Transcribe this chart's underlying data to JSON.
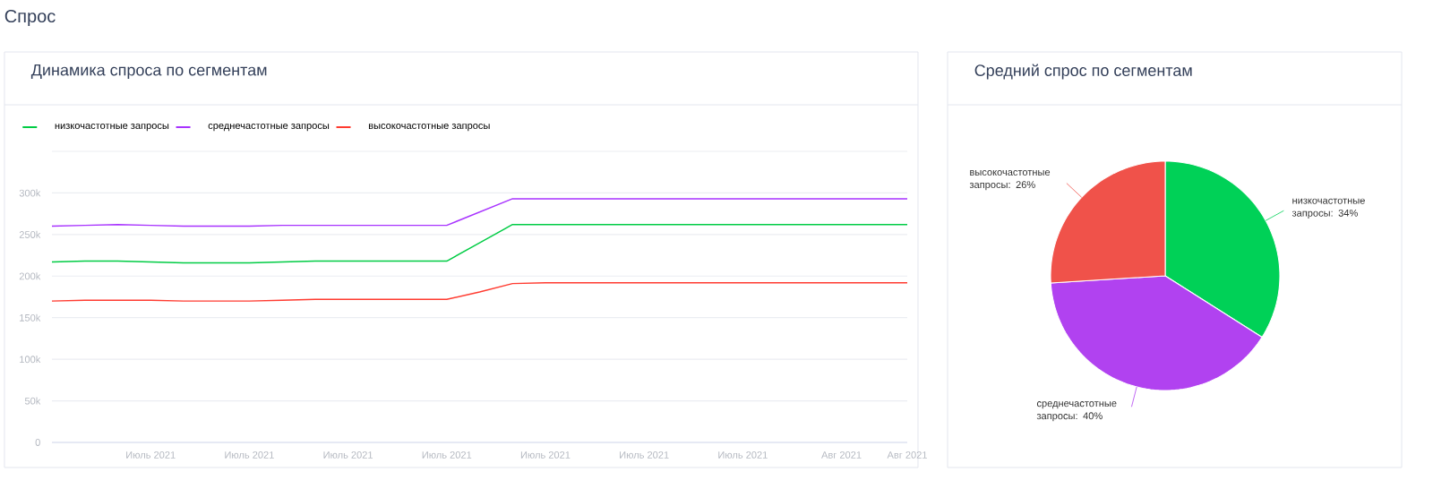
{
  "chart_data": [
    {
      "type": "line",
      "title": "Динамика спроса по сегментам",
      "annotations": [
        "Спрос"
      ],
      "categories": [
        null,
        null,
        null,
        "Июль 2021",
        null,
        null,
        "Июль 2021",
        null,
        null,
        "Июль 2021",
        null,
        null,
        "Июль 2021",
        null,
        null,
        "Июль 2021",
        null,
        null,
        "Июль 2021",
        null,
        null,
        "Июль 2021",
        null,
        null,
        "Авг 2021",
        null,
        "Авг 2021"
      ],
      "series": [
        {
          "name": "низкочастотные запросы",
          "color": "#00cc44",
          "values": [
            217000,
            218000,
            218000,
            217000,
            216000,
            216000,
            216000,
            217000,
            218000,
            218000,
            218000,
            218000,
            218000,
            240000,
            262000,
            262000,
            262000,
            262000,
            262000,
            262000,
            262000,
            262000,
            262000,
            262000,
            262000,
            262000,
            262000
          ]
        },
        {
          "name": "среднечастотные запросы",
          "color": "#a833ff",
          "values": [
            260000,
            261000,
            262000,
            261000,
            260000,
            260000,
            260000,
            261000,
            261000,
            261000,
            261000,
            261000,
            261000,
            277000,
            293000,
            293000,
            293000,
            293000,
            293000,
            293000,
            293000,
            293000,
            293000,
            293000,
            293000,
            293000,
            293000
          ]
        },
        {
          "name": "высокочастотные запросы",
          "color": "#ff3b30",
          "values": [
            170000,
            171000,
            171000,
            171000,
            170000,
            170000,
            170000,
            171000,
            172000,
            172000,
            172000,
            172000,
            172000,
            181000,
            191000,
            192000,
            192000,
            192000,
            192000,
            192000,
            192000,
            192000,
            192000,
            192000,
            192000,
            192000,
            192000
          ]
        }
      ],
      "ylim": [
        0,
        350000
      ],
      "yticks": [
        0,
        {
          "value": 50000,
          "label": "50k"
        },
        {
          "value": 100000,
          "label": "100k"
        },
        {
          "value": 150000,
          "label": "150k"
        },
        {
          "value": 200000,
          "label": "200k"
        },
        {
          "value": 250000,
          "label": "250k"
        },
        {
          "value": 300000,
          "label": "300k"
        },
        {
          "value": 350000,
          "label": null
        }
      ],
      "grid": "y",
      "legend": "top left"
    },
    {
      "type": "pie",
      "title": "Средний спрос по сегментам",
      "categories": [
        "низкочастотные запросы",
        "среднечастотные запросы",
        "высокочастотные запросы"
      ],
      "values": [
        34,
        40,
        26
      ],
      "colors": [
        "#00d157",
        "#b142f0",
        "#f0524a"
      ],
      "value_labels": [
        ": 34%",
        ": 40%",
        ": 26%"
      ]
    }
  ]
}
